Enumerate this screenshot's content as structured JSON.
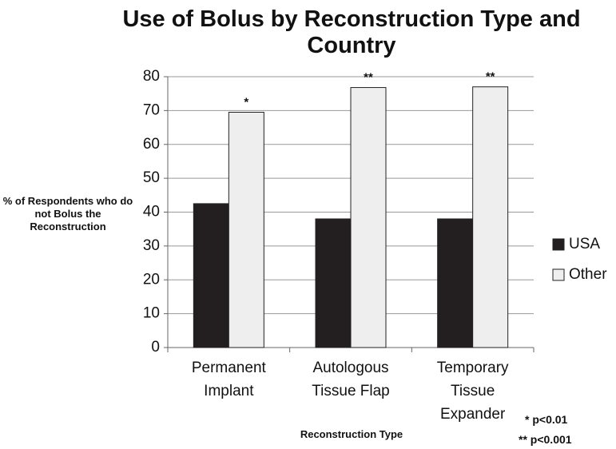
{
  "chart_data": {
    "type": "bar",
    "title": "Use of Bolus by Reconstruction Type and Country",
    "x_label": "Reconstruction Type",
    "y_label": "% of Respondents who do not Bolus the Reconstruction",
    "categories": [
      "Permanent Implant",
      "Autologous Tissue Flap",
      "Temporary Tissue Expander"
    ],
    "series": [
      {
        "name": "USA",
        "color": "#231f20",
        "values": [
          42.5,
          38,
          38
        ]
      },
      {
        "name": "Other",
        "color": "#eeeeee",
        "values": [
          69.5,
          76.8,
          77
        ],
        "annotations": [
          "*",
          "**",
          "**"
        ]
      }
    ],
    "ylim": [
      0,
      80
    ],
    "yticks": [
      0,
      10,
      20,
      30,
      40,
      50,
      60,
      70,
      80
    ],
    "grid": true,
    "legend": "right",
    "notes": [
      "* p<0.01",
      "** p<0.001"
    ]
  }
}
